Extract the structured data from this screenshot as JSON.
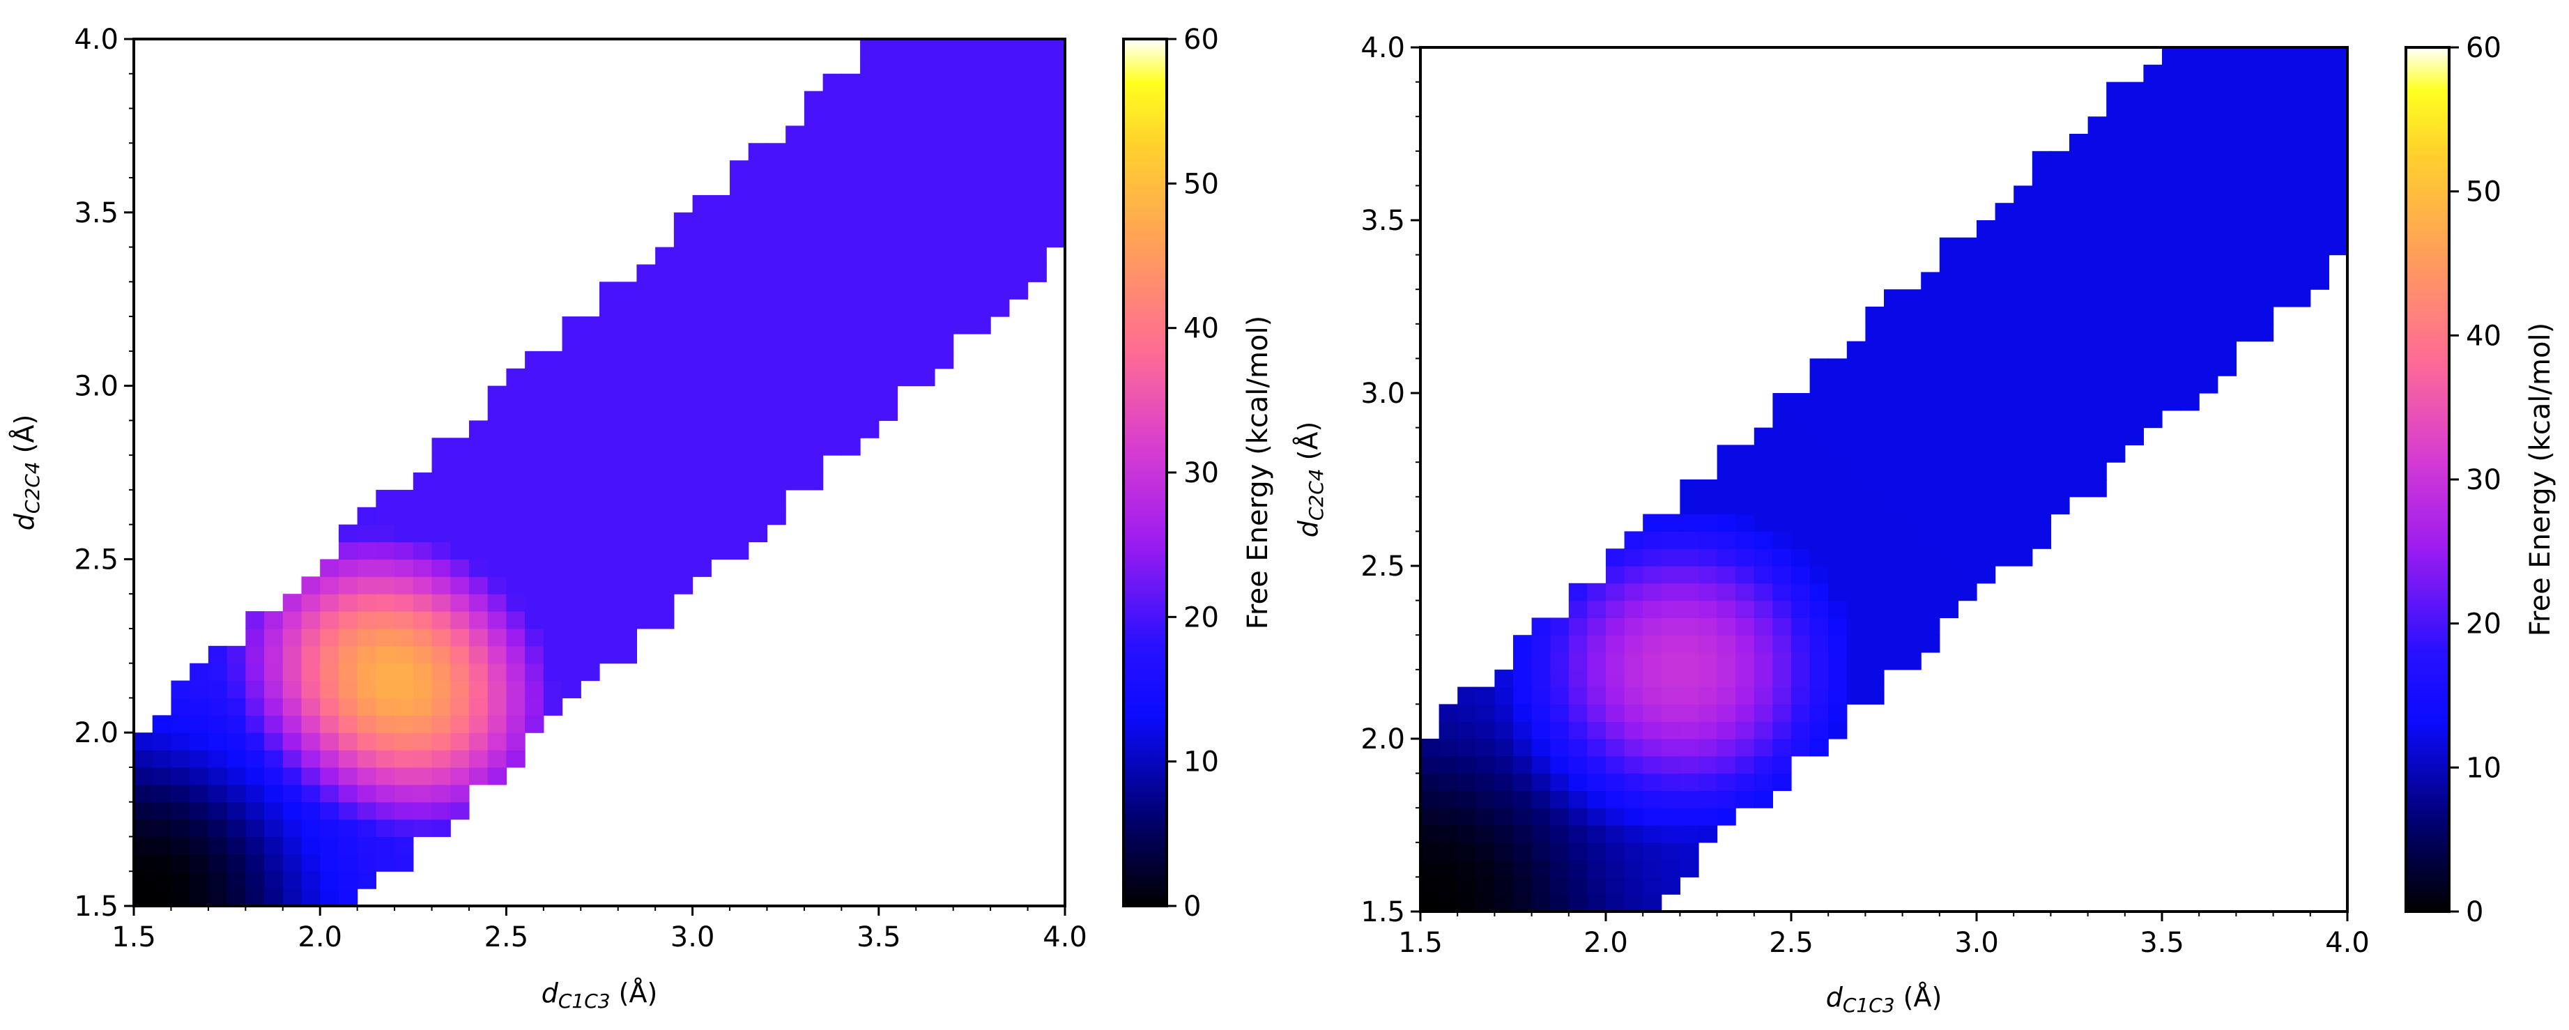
{
  "chart_data": [
    {
      "type": "heatmap",
      "panel": "left",
      "xlabel": {
        "main": "d",
        "sub": "C1C3",
        "unit": " (Å)"
      },
      "ylabel": {
        "main": "d",
        "sub": "C2C4",
        "unit": " (Å)"
      },
      "xlim": [
        1.5,
        4.0
      ],
      "ylim": [
        1.5,
        4.0
      ],
      "xticks": [
        "1.5",
        "2.0",
        "2.5",
        "3.0",
        "3.5",
        "4.0"
      ],
      "yticks": [
        "1.5",
        "2.0",
        "2.5",
        "3.0",
        "3.5",
        "4.0"
      ],
      "bin_size": 0.05,
      "band": {
        "lower_offset": -0.6,
        "upper_offset": 0.5,
        "jitter": 0.1
      },
      "energy_model": {
        "minimum": 0,
        "ts_height": 48,
        "ts_center": [
          2.2,
          2.15
        ],
        "plateau": 20,
        "min_sigma": 0.12,
        "ts_sigma_along": 0.3,
        "ts_sigma_perp": 0.35
      },
      "colorbar": {
        "label": "Free Energy (kcal/mol)",
        "ticks": [
          "0",
          "10",
          "20",
          "30",
          "40",
          "50",
          "60"
        ],
        "range": [
          0,
          60
        ],
        "colormap": "gnuplot2"
      }
    },
    {
      "type": "heatmap",
      "panel": "right",
      "xlabel": {
        "main": "d",
        "sub": "C1C3",
        "unit": " (Å)"
      },
      "ylabel": {
        "main": "d",
        "sub": "C2C4",
        "unit": " (Å)"
      },
      "xlim": [
        1.5,
        4.0
      ],
      "ylim": [
        1.5,
        4.0
      ],
      "xticks": [
        "1.5",
        "2.0",
        "2.5",
        "3.0",
        "3.5",
        "4.0"
      ],
      "yticks": [
        "1.5",
        "2.0",
        "2.5",
        "3.0",
        "3.5",
        "4.0"
      ],
      "bin_size": 0.05,
      "band": {
        "lower_offset": -0.6,
        "upper_offset": 0.5,
        "jitter": 0.1
      },
      "energy_model": {
        "minimum": 0,
        "ts_height": 30,
        "ts_center": [
          2.2,
          2.2
        ],
        "plateau": 12,
        "min_sigma": 0.12,
        "ts_sigma_along": 0.35,
        "ts_sigma_perp": 0.35
      },
      "colorbar": {
        "label": "Free Energy (kcal/mol)",
        "ticks": [
          "0",
          "10",
          "20",
          "30",
          "40",
          "50",
          "60"
        ],
        "range": [
          0,
          60
        ],
        "colormap": "gnuplot2"
      }
    }
  ]
}
